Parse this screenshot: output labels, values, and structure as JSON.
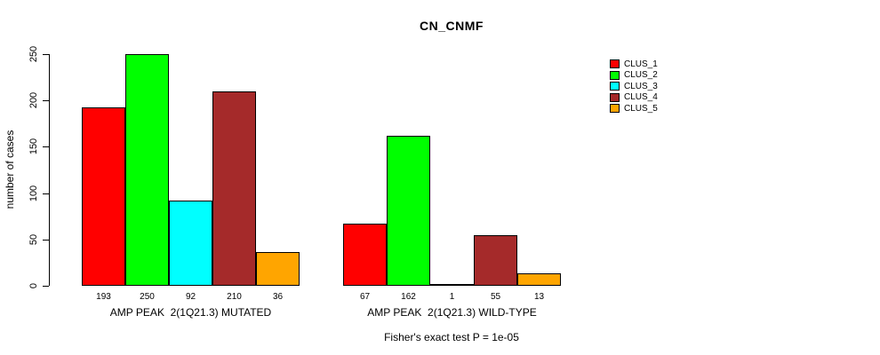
{
  "title": "CN_CNMF",
  "chart_data": {
    "type": "bar",
    "title": "CN_CNMF",
    "xlabel": "",
    "ylabel": "number of cases",
    "ylim": [
      0,
      250
    ],
    "yticks": [
      0,
      50,
      100,
      150,
      200,
      250
    ],
    "grid": false,
    "legend_position": "top-right",
    "categories": [
      "AMP PEAK  2(1Q21.3) MUTATED",
      "AMP PEAK  2(1Q21.3) WILD-TYPE"
    ],
    "series": [
      {
        "name": "CLUS_1",
        "color": "#FF0000",
        "values": [
          193,
          67
        ]
      },
      {
        "name": "CLUS_2",
        "color": "#00FF00",
        "values": [
          250,
          162
        ]
      },
      {
        "name": "CLUS_3",
        "color": "#00FFFF",
        "values": [
          92,
          1
        ]
      },
      {
        "name": "CLUS_4",
        "color": "#A52A2A",
        "values": [
          210,
          55
        ]
      },
      {
        "name": "CLUS_5",
        "color": "#FFA500",
        "values": [
          36,
          13
        ]
      }
    ],
    "bar_value_labels": [
      [
        "193",
        "250",
        "92",
        "210",
        "36"
      ],
      [
        "67",
        "162",
        "1",
        "55",
        "13"
      ]
    ],
    "annotation": "Fisher's exact test P = 1e-05",
    "colors": {
      "axis": "#000000",
      "text": "#000000",
      "background": "#FFFFFF"
    }
  }
}
